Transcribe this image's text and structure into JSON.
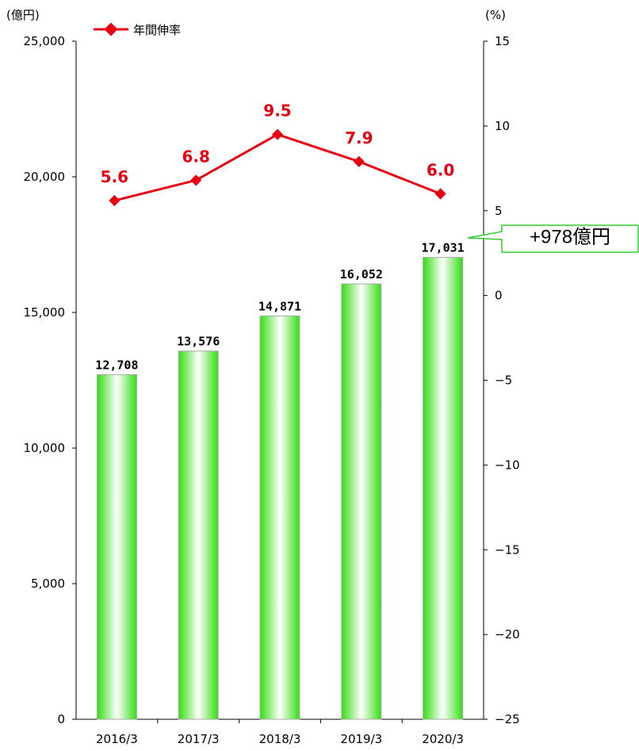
{
  "chart_data": {
    "type": "bar",
    "categories": [
      "2016/3",
      "2017/3",
      "2018/3",
      "2019/3",
      "2020/3"
    ],
    "series": [
      {
        "type": "bar",
        "axis": "left",
        "values": [
          12708,
          13576,
          14871,
          16052,
          17031
        ],
        "labels": [
          "12,708",
          "13,576",
          "14,871",
          "16,052",
          "17,031"
        ]
      },
      {
        "name": "年間伸率",
        "type": "line",
        "axis": "right",
        "values": [
          5.6,
          6.8,
          9.5,
          7.9,
          6.0
        ],
        "labels": [
          "5.6",
          "6.8",
          "9.5",
          "7.9",
          "6.0"
        ]
      }
    ],
    "y_left": {
      "unit": "(億円)",
      "range": [
        0,
        25000
      ],
      "ticks": [
        "25,000",
        "20,000",
        "15,000",
        "10,000",
        "5,000",
        "0"
      ]
    },
    "y_right": {
      "unit": "(%)",
      "range": [
        -25,
        15
      ],
      "ticks": [
        "15",
        "10",
        "5",
        "0",
        "−5",
        "−10",
        "−15",
        "−20",
        "−25"
      ]
    },
    "legend": {
      "label": "年間伸率",
      "position": "top-left"
    },
    "annotation": {
      "text": "+978億円",
      "points_to": "2020/3"
    },
    "grid": false
  },
  "colors": {
    "bar": "#33dd11",
    "line": "#e60012",
    "callout": "#33cc33"
  }
}
